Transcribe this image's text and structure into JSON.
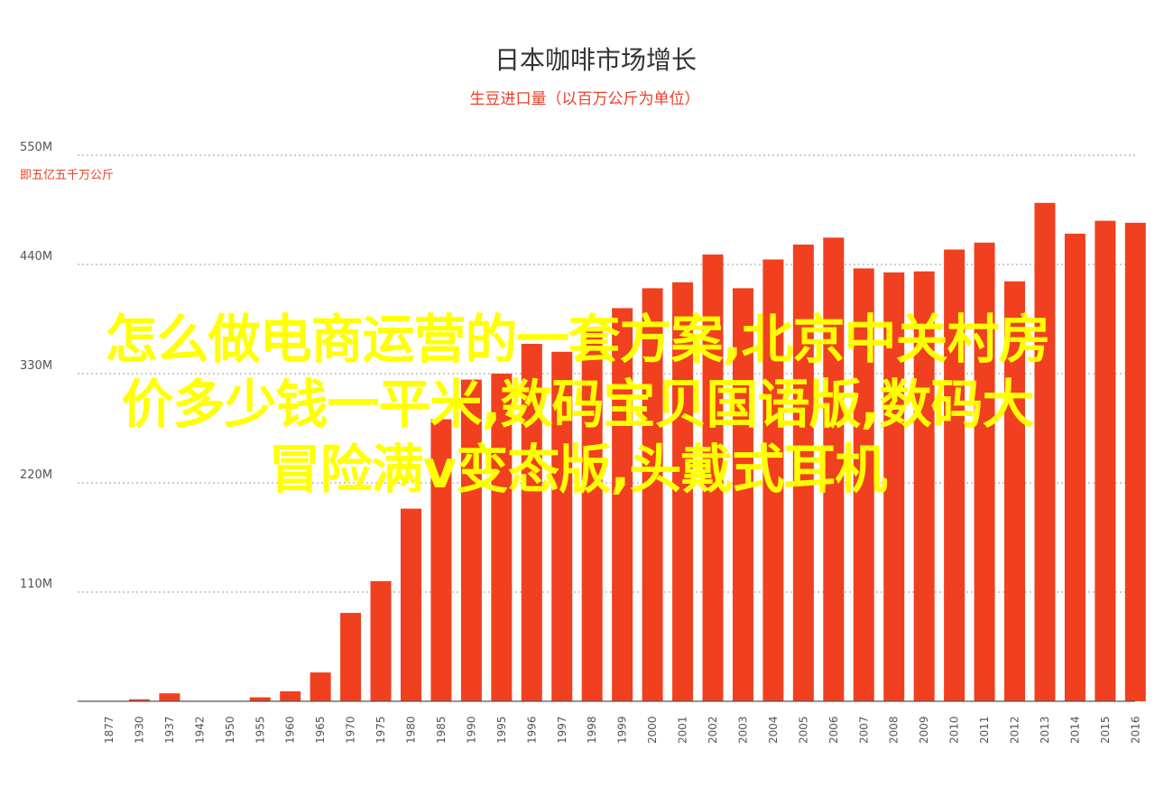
{
  "chart_data": {
    "type": "bar",
    "title": "日本咖啡市场增长",
    "subtitle": "生豆进口量（以百万公斤为单位）",
    "unit_note": "即五亿五千万公斤",
    "categories": [
      "1877",
      "1930",
      "1937",
      "1942",
      "1950",
      "1955",
      "1960",
      "1965",
      "1970",
      "1975",
      "1980",
      "1985",
      "1990",
      "1995",
      "1996",
      "1997",
      "1998",
      "1999",
      "2000",
      "2001",
      "2002",
      "2003",
      "2004",
      "2005",
      "2006",
      "2007",
      "2008",
      "2009",
      "2010",
      "2011",
      "2012",
      "2013",
      "2014",
      "2015",
      "2016"
    ],
    "values": [
      0,
      2,
      8,
      0,
      0,
      4,
      10,
      29,
      89,
      121,
      194,
      284,
      324,
      330,
      360,
      352,
      374,
      396,
      416,
      422,
      450,
      416,
      445,
      460,
      467,
      436,
      432,
      433,
      455,
      462,
      423,
      502,
      471,
      484,
      482
    ],
    "yticks": [
      {
        "value": 110,
        "label": "110M"
      },
      {
        "value": 220,
        "label": "220M"
      },
      {
        "value": 330,
        "label": "330M"
      },
      {
        "value": 440,
        "label": "440M"
      },
      {
        "value": 550,
        "label": "550M"
      }
    ],
    "ylim": [
      0,
      550
    ],
    "grid": true,
    "legend": "none",
    "bar_color": "#f0401f"
  },
  "overlay": {
    "lines": [
      "怎么做电商运营的一套方案,北京中关村房",
      "价多少钱一平米,数码宝贝国语版,数码大",
      "冒险满v变态版,头戴式耳机"
    ],
    "color": "#ffff00"
  }
}
